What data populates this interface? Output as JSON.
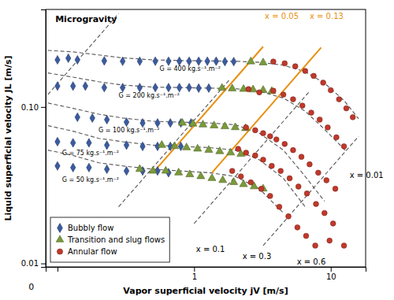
{
  "chart_data": {
    "type": "scatter",
    "log": true,
    "grid": false,
    "legend": "lower left",
    "x_label": "Vapor superficial velocity jV [m/s]",
    "y_label": "Liquid superficial velocity JL [m/s]",
    "xlim": [
      0.082,
      18
    ],
    "ylim": [
      0.0095,
      0.42
    ],
    "xticks": [
      {
        "value": 0.1,
        "label": null
      },
      1,
      10
    ],
    "yticks": [
      0.01,
      {
        "value": 0.1,
        "label": "0.10"
      }
    ],
    "annotations": [
      {
        "text": "0"
      },
      {
        "text": "Microgravity"
      },
      {
        "text": "x = 0.01",
        "color": "black"
      },
      {
        "text": "x = 0.1",
        "color": "black"
      },
      {
        "text": "x = 0.3",
        "color": "black"
      },
      {
        "text": "x = 0.6",
        "color": "black"
      },
      {
        "text": "x = 0.05",
        "color": "#e89010"
      },
      {
        "text": "x = 0.13",
        "color": "#e89010"
      },
      {
        "text": "G = 400 kg.s⁻¹.m⁻²",
        "color": "black"
      },
      {
        "text": "G = 200 kg.s⁻¹.m⁻²",
        "color": "black"
      },
      {
        "text": "G = 100 kg.s⁻¹.m⁻²",
        "color": "black"
      },
      {
        "text": "G = 75 kg.s⁻¹.m⁻²",
        "color": "black"
      },
      {
        "text": "G = 50 kg.s⁻¹.m⁻²",
        "color": "black"
      }
    ],
    "series": [
      {
        "name": "Bubbly flow",
        "type": "scatter",
        "marker": "diamond",
        "color": "#3a5ba0",
        "x": [
          0.1,
          0.12,
          0.14,
          0.22,
          0.3,
          0.4,
          0.52,
          0.65,
          0.78,
          0.92,
          1.08,
          1.25,
          1.45,
          1.68,
          1.95,
          0.1,
          0.13,
          0.16,
          0.22,
          0.3,
          0.4,
          0.52,
          0.65,
          0.78,
          0.92,
          1.08,
          1.28,
          0.14,
          0.18,
          0.23,
          0.32,
          0.42,
          0.54,
          0.67,
          0.8,
          0.95,
          0.1,
          0.13,
          0.17,
          0.23,
          0.32,
          0.42,
          0.54,
          0.67,
          0.8,
          0.1,
          0.13,
          0.17,
          0.23,
          0.32,
          0.42,
          0.54,
          0.65
        ],
        "values": [
          0.2,
          0.205,
          0.2,
          0.197,
          0.196,
          0.196,
          0.196,
          0.196,
          0.196,
          0.196,
          0.196,
          0.196,
          0.196,
          0.195,
          0.195,
          0.136,
          0.136,
          0.136,
          0.133,
          0.133,
          0.133,
          0.133,
          0.133,
          0.133,
          0.133,
          0.132,
          0.132,
          0.086,
          0.085,
          0.083,
          0.08,
          0.079,
          0.079,
          0.079,
          0.079,
          0.079,
          0.06,
          0.059,
          0.059,
          0.057,
          0.057,
          0.056,
          0.056,
          0.056,
          0.056,
          0.042,
          0.041,
          0.041,
          0.04,
          0.039,
          0.039,
          0.039,
          0.038
        ]
      },
      {
        "name": "Transition and slug flows",
        "type": "scatter",
        "marker": "triangle",
        "color": "#7a9a3a",
        "x": [
          2.6,
          3.2,
          1.6,
          1.9,
          2.3,
          2.7,
          3.2,
          3.7,
          0.82,
          0.98,
          1.16,
          1.4,
          1.68,
          2.0,
          2.38,
          0.58,
          0.72,
          0.88,
          1.06,
          1.28,
          1.54,
          1.85,
          2.2,
          0.4,
          0.5,
          0.62,
          0.77,
          0.93,
          1.12,
          1.35,
          1.62,
          1.95,
          2.3,
          2.75,
          3.2
        ],
        "values": [
          0.195,
          0.192,
          0.132,
          0.131,
          0.13,
          0.129,
          0.128,
          0.126,
          0.079,
          0.078,
          0.077,
          0.076,
          0.075,
          0.074,
          0.073,
          0.057,
          0.056,
          0.055,
          0.054,
          0.053,
          0.052,
          0.051,
          0.05,
          0.04,
          0.039,
          0.039,
          0.038,
          0.037,
          0.036,
          0.035,
          0.034,
          0.033,
          0.032,
          0.031,
          0.03
        ]
      },
      {
        "name": "Annular flow",
        "type": "scatter",
        "marker": "circle",
        "color": "#c0392b",
        "x": [
          3.8,
          4.6,
          5.5,
          6.5,
          7.5,
          8.8,
          10.0,
          11.5,
          13.0,
          14.5,
          2.5,
          3.0,
          3.8,
          4.5,
          5.3,
          6.2,
          7.2,
          8.3,
          9.5,
          11.0,
          12.5,
          2.4,
          2.8,
          3.2,
          3.6,
          4.0,
          4.6,
          5.3,
          6.1,
          7.0,
          8.1,
          9.3,
          10.8,
          2.1,
          2.4,
          2.8,
          3.2,
          3.7,
          4.3,
          5.0,
          5.8,
          6.7,
          7.8,
          9.0,
          10.4,
          1.9,
          2.2,
          2.6,
          3.1,
          3.6,
          4.2,
          4.9,
          5.7,
          6.6,
          7.7,
          9.8,
          12.5
        ],
        "values": [
          0.195,
          0.19,
          0.182,
          0.17,
          0.158,
          0.143,
          0.128,
          0.112,
          0.098,
          0.086,
          0.13,
          0.124,
          0.127,
          0.12,
          0.112,
          0.102,
          0.092,
          0.083,
          0.074,
          0.064,
          0.056,
          0.074,
          0.071,
          0.068,
          0.065,
          0.062,
          0.058,
          0.053,
          0.048,
          0.043,
          0.038,
          0.034,
          0.03,
          0.054,
          0.051,
          0.049,
          0.046,
          0.042,
          0.039,
          0.035,
          0.031,
          0.028,
          0.024,
          0.021,
          0.018,
          0.039,
          0.036,
          0.033,
          0.03,
          0.027,
          0.023,
          0.02,
          0.017,
          0.015,
          0.013,
          0.014,
          0.013
        ]
      },
      {
        "type": "line",
        "line_style": "dashed",
        "color": "#555555",
        "x": [
          0.085,
          0.13,
          0.2,
          0.3,
          0.5,
          0.8,
          1.3,
          2.0,
          3.0,
          4.5,
          6.5,
          9.0,
          12.5,
          16.0
        ],
        "values": [
          0.23,
          0.225,
          0.215,
          0.206,
          0.2,
          0.198,
          0.197,
          0.196,
          0.193,
          0.185,
          0.168,
          0.142,
          0.11,
          0.084
        ]
      },
      {
        "type": "line",
        "line_style": "dashed",
        "color": "#555555",
        "x": [
          0.085,
          0.13,
          0.2,
          0.3,
          0.5,
          0.8,
          1.3,
          2.0,
          3.0,
          4.5,
          6.5,
          9.0,
          13.0
        ],
        "values": [
          0.165,
          0.155,
          0.145,
          0.138,
          0.134,
          0.133,
          0.132,
          0.131,
          0.126,
          0.114,
          0.094,
          0.072,
          0.052
        ]
      },
      {
        "type": "line",
        "line_style": "dashed",
        "color": "#555555",
        "x": [
          0.085,
          0.13,
          0.2,
          0.3,
          0.5,
          0.8,
          1.3,
          2.0,
          3.0,
          4.5,
          6.5,
          9.0
        ],
        "values": [
          0.106,
          0.098,
          0.09,
          0.085,
          0.081,
          0.08,
          0.079,
          0.077,
          0.068,
          0.053,
          0.036,
          0.025
        ]
      },
      {
        "type": "line",
        "line_style": "dashed",
        "color": "#555555",
        "x": [
          0.085,
          0.13,
          0.2,
          0.3,
          0.5,
          0.8,
          1.3,
          2.0,
          3.0,
          4.5,
          6.5
        ],
        "values": [
          0.076,
          0.07,
          0.063,
          0.06,
          0.057,
          0.056,
          0.055,
          0.053,
          0.046,
          0.035,
          0.023
        ]
      },
      {
        "type": "line",
        "line_style": "dashed",
        "color": "#555555",
        "x": [
          0.085,
          0.13,
          0.2,
          0.3,
          0.5,
          0.8,
          1.3,
          2.0,
          3.0,
          4.5
        ],
        "values": [
          0.053,
          0.049,
          0.044,
          0.042,
          0.04,
          0.039,
          0.038,
          0.036,
          0.03,
          0.021
        ]
      },
      {
        "type": "line",
        "line_style": "dashed",
        "color": "#555555",
        "x": [
          0.085,
          0.28
        ],
        "values": [
          0.12,
          0.395
        ]
      },
      {
        "type": "line",
        "line_style": "dashed",
        "color": "#555555",
        "x": [
          0.28,
          1.8
        ],
        "values": [
          0.023,
          0.148
        ]
      },
      {
        "type": "line",
        "line_style": "dashed",
        "color": "#555555",
        "x": [
          1.0,
          7.0
        ],
        "values": [
          0.018,
          0.126
        ]
      },
      {
        "type": "line",
        "line_style": "dashed",
        "color": "#555555",
        "x": [
          3.2,
          16.0
        ],
        "values": [
          0.013,
          0.065
        ]
      },
      {
        "type": "line",
        "line_style": "solid",
        "color": "#e89010",
        "x": [
          0.5,
          3.2
        ],
        "values": [
          0.038,
          0.243
        ]
      },
      {
        "type": "line",
        "line_style": "solid",
        "color": "#e89010",
        "x": [
          1.35,
          8.5
        ],
        "values": [
          0.038,
          0.24
        ]
      }
    ]
  }
}
